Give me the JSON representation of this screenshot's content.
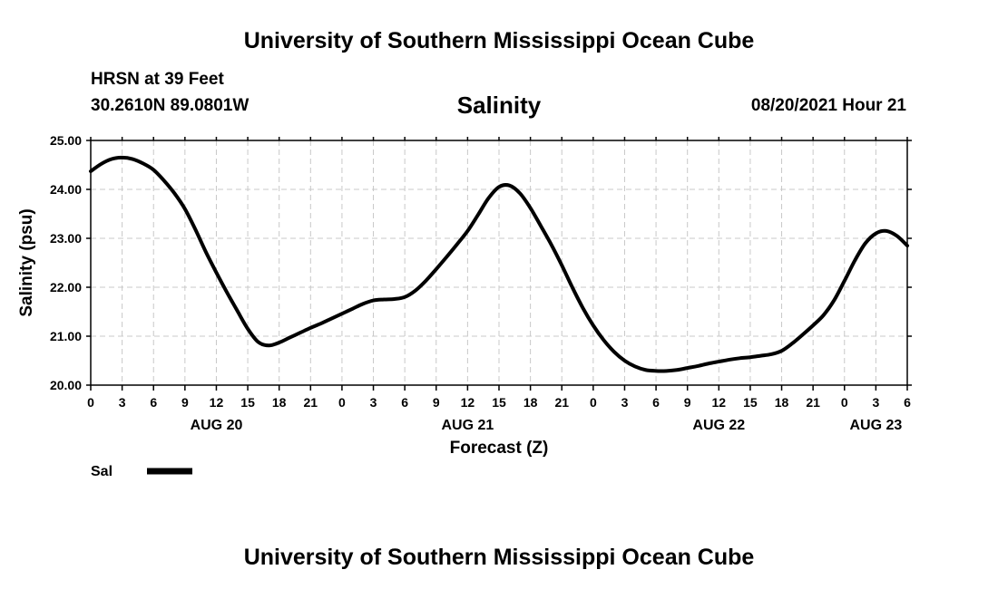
{
  "header": {
    "title": "University of Southern Mississippi Ocean Cube",
    "station": "HRSN at 39 Feet",
    "coords": "30.2610N  89.0801W",
    "parameter": "Salinity",
    "issued": "08/20/2021 Hour 21"
  },
  "footer": {
    "title": "University of Southern Mississippi Ocean Cube"
  },
  "legend": {
    "label": "Sal",
    "color": "#000000"
  },
  "chart_data": {
    "type": "line",
    "title": "Salinity",
    "xlabel": "Forecast (Z)",
    "ylabel": "Salinity (psu)",
    "ylim": [
      20.0,
      25.0
    ],
    "yticks": [
      "20.00",
      "21.00",
      "22.00",
      "23.00",
      "24.00",
      "25.00"
    ],
    "xlim_hours": [
      0,
      78
    ],
    "xtick_labels": [
      "0",
      "3",
      "6",
      "9",
      "12",
      "15",
      "18",
      "21",
      "0",
      "3",
      "6",
      "9",
      "12",
      "15",
      "18",
      "21",
      "0",
      "3",
      "6",
      "9",
      "12",
      "15",
      "18",
      "21",
      "0",
      "3",
      "6"
    ],
    "day_labels": [
      {
        "label": "AUG 20",
        "hour": 12
      },
      {
        "label": "AUG 21",
        "hour": 36
      },
      {
        "label": "AUG 22",
        "hour": 60
      },
      {
        "label": "AUG 23",
        "hour": 75
      }
    ],
    "grid": true,
    "legend_position": "bottom-left",
    "series": [
      {
        "name": "Sal",
        "x_hours": [
          0,
          1,
          2,
          3,
          4,
          5,
          6,
          7,
          8,
          9,
          10,
          11,
          12,
          13,
          14,
          15,
          16,
          17,
          18,
          19,
          20,
          21,
          22,
          23,
          24,
          25,
          26,
          27,
          28,
          29,
          30,
          31,
          32,
          33,
          34,
          35,
          36,
          37,
          38,
          39,
          40,
          41,
          42,
          43,
          44,
          45,
          46,
          47,
          48,
          49,
          50,
          51,
          52,
          53,
          54,
          55,
          56,
          57,
          58,
          59,
          60,
          61,
          62,
          63,
          64,
          65,
          66,
          67,
          68,
          69,
          70,
          71,
          72,
          73,
          74,
          75,
          76,
          77,
          78
        ],
        "values": [
          24.37,
          24.52,
          24.62,
          24.65,
          24.62,
          24.53,
          24.4,
          24.18,
          23.92,
          23.6,
          23.18,
          22.72,
          22.3,
          21.9,
          21.52,
          21.15,
          20.88,
          20.81,
          20.87,
          20.97,
          21.07,
          21.17,
          21.26,
          21.36,
          21.46,
          21.56,
          21.66,
          21.73,
          21.75,
          21.76,
          21.8,
          21.93,
          22.13,
          22.37,
          22.62,
          22.88,
          23.15,
          23.48,
          23.82,
          24.05,
          24.08,
          23.92,
          23.62,
          23.25,
          22.87,
          22.45,
          22.0,
          21.58,
          21.22,
          20.92,
          20.68,
          20.5,
          20.38,
          20.31,
          20.29,
          20.29,
          20.31,
          20.35,
          20.39,
          20.44,
          20.48,
          20.52,
          20.55,
          20.57,
          20.6,
          20.63,
          20.7,
          20.85,
          21.03,
          21.22,
          21.43,
          21.73,
          22.13,
          22.55,
          22.9,
          23.1,
          23.15,
          23.05,
          22.85
        ]
      }
    ]
  }
}
